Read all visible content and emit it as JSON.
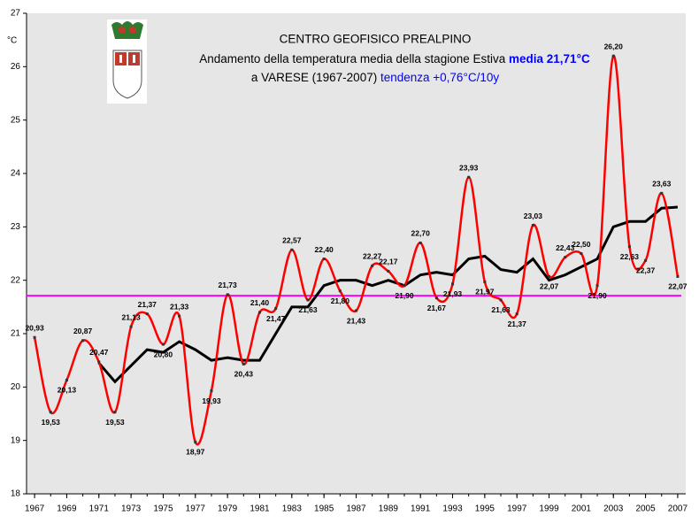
{
  "chart_data": {
    "type": "line",
    "title": "CENTRO GEOFISICO PREALPINO",
    "subtitle": "Andamento della temperatura media della stagione Estiva",
    "mean_label": "media 21,71°C",
    "subtitle2": "a VARESE (1967-2007)",
    "trend_label": "tendenza +0,76°C/10y",
    "y_label": "°C",
    "x": [
      1967,
      1968,
      1969,
      1970,
      1971,
      1972,
      1973,
      1974,
      1975,
      1976,
      1977,
      1978,
      1979,
      1980,
      1981,
      1982,
      1983,
      1984,
      1985,
      1986,
      1987,
      1988,
      1989,
      1990,
      1991,
      1992,
      1993,
      1994,
      1995,
      1996,
      1997,
      1998,
      1999,
      2000,
      2001,
      2002,
      2003,
      2004,
      2005,
      2006,
      2007
    ],
    "series": [
      {
        "color": "#ff0000",
        "values": [
          20.93,
          19.53,
          20.13,
          20.87,
          20.47,
          19.53,
          21.13,
          21.37,
          20.8,
          21.33,
          18.97,
          19.93,
          21.73,
          20.43,
          21.4,
          21.47,
          22.57,
          21.63,
          22.4,
          21.8,
          21.43,
          22.27,
          22.17,
          21.9,
          22.7,
          21.67,
          21.93,
          23.93,
          21.97,
          21.63,
          21.37,
          23.03,
          22.07,
          22.43,
          22.5,
          21.9,
          26.2,
          22.63,
          22.37,
          23.63,
          22.07
        ],
        "value_labels": [
          "20,93",
          "19,53",
          "20,13",
          "20,87",
          "20,47",
          "19,53",
          "21,13",
          "21,37",
          "20,80",
          "21,33",
          "18,97",
          "19,93",
          "21,73",
          "20,43",
          "21,40",
          "21,47",
          "22,57",
          "21,63",
          "22,40",
          "21,80",
          "21,43",
          "22,27",
          "22,17",
          "21,90",
          "22,70",
          "21,67",
          "21,93",
          "23,93",
          "21,97",
          "21,63",
          "21,37",
          "23,03",
          "22,07",
          "22,43",
          "22,50",
          "21,90",
          "26,20",
          "22,63",
          "22,37",
          "23,63",
          "22,07"
        ]
      },
      {
        "color": "#000000",
        "values": [
          null,
          null,
          null,
          null,
          20.45,
          20.1,
          20.4,
          20.7,
          20.65,
          20.85,
          20.7,
          20.5,
          20.55,
          20.5,
          20.5,
          21.0,
          21.5,
          21.5,
          21.9,
          22.0,
          22.0,
          21.9,
          22.0,
          21.9,
          22.1,
          22.15,
          22.1,
          22.4,
          22.45,
          22.2,
          22.15,
          22.4,
          22.0,
          22.1,
          22.25,
          22.4,
          23.0,
          23.1,
          23.1,
          23.35,
          23.37
        ]
      }
    ],
    "mean": 21.71,
    "mean_color": "#ff00ff",
    "xlim": [
      1966.5,
      2007.5
    ],
    "xticks": [
      1967,
      1969,
      1971,
      1973,
      1975,
      1977,
      1979,
      1981,
      1983,
      1985,
      1987,
      1989,
      1991,
      1993,
      1995,
      1997,
      1999,
      2001,
      2003,
      2005,
      2007
    ],
    "ylim": [
      18,
      27
    ],
    "yticks": [
      18,
      19,
      20,
      21,
      22,
      23,
      24,
      25,
      26,
      27
    ]
  }
}
